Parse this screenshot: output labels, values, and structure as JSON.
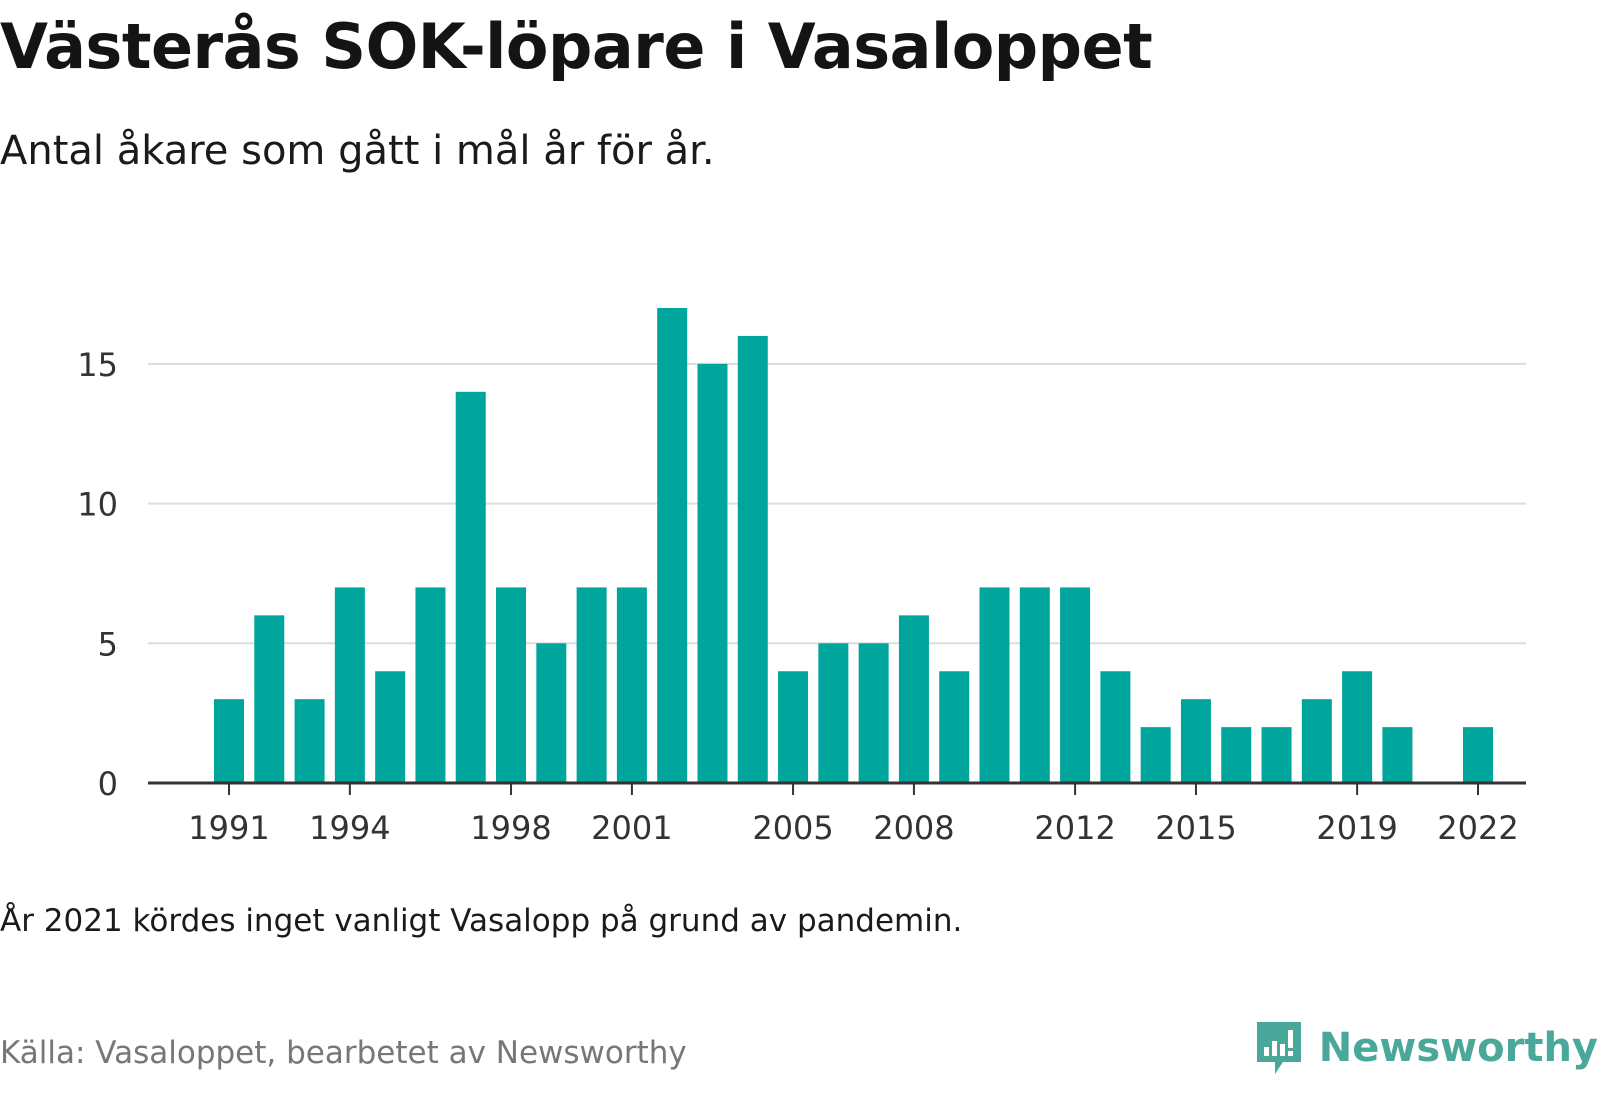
{
  "title": "Västerås SOK-löpare i Vasaloppet",
  "subtitle": "Antal åkare som gått i mål år för år.",
  "note": "År 2021 kördes inget vanligt Vasalopp på grund av pandemin.",
  "source": "Källa: Vasaloppet, bearbetet av Newsworthy",
  "brand": {
    "name": "Newsworthy",
    "icon": "newsworthy-chart-logo-icon",
    "color": "#4aa89b"
  },
  "colors": {
    "bar": "#00a59b",
    "grid": "#dddddd",
    "axis": "#333333"
  },
  "chart_data": {
    "type": "bar",
    "categories": [
      1991,
      1992,
      1993,
      1994,
      1995,
      1996,
      1997,
      1998,
      1999,
      2000,
      2001,
      2002,
      2003,
      2004,
      2005,
      2006,
      2007,
      2008,
      2009,
      2010,
      2011,
      2012,
      2013,
      2014,
      2015,
      2016,
      2017,
      2018,
      2019,
      2020,
      2021,
      2022
    ],
    "values": [
      3,
      6,
      3,
      7,
      4,
      7,
      14,
      7,
      5,
      7,
      7,
      17,
      15,
      16,
      4,
      5,
      5,
      6,
      4,
      7,
      7,
      7,
      4,
      2,
      3,
      2,
      2,
      3,
      4,
      2,
      null,
      2
    ],
    "title": "Västerås SOK-löpare i Vasaloppet",
    "subtitle": "Antal åkare som gått i mål år för år.",
    "xlabel": "",
    "ylabel": "",
    "ylim": [
      0,
      17
    ],
    "yticks": [
      0,
      5,
      10,
      15
    ],
    "xtick_labels": [
      1991,
      1994,
      1998,
      2001,
      2005,
      2008,
      2012,
      2015,
      2019,
      2022
    ],
    "grid": true,
    "legend": "none"
  }
}
